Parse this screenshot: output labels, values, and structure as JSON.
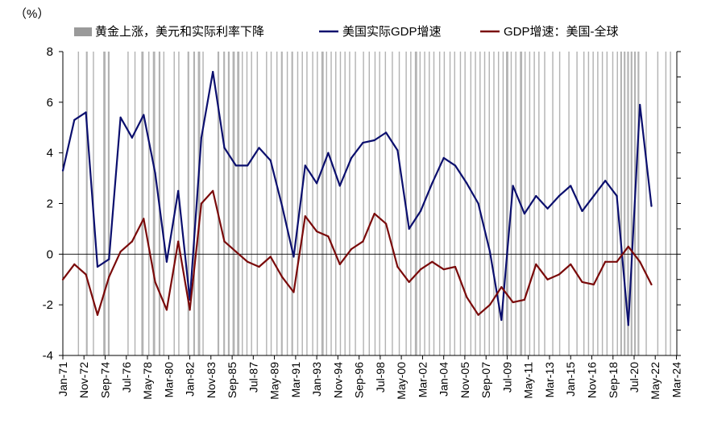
{
  "chart_data": {
    "type": "line",
    "unit_label": "（%）",
    "legend": [
      {
        "key": "shade",
        "label": "黄金上涨，美元和实际利率下降",
        "color": "#9a9a9a"
      },
      {
        "key": "us_gdp",
        "label": "美国实际GDP增速",
        "color": "#0b0f6e"
      },
      {
        "key": "diff",
        "label": "GDP增速：美国-全球",
        "color": "#7a0a0a"
      }
    ],
    "legend_position": "top",
    "ylim": [
      -4,
      8
    ],
    "yticks": [
      "8",
      "6",
      "4",
      "2",
      "0",
      "-2",
      "-4"
    ],
    "ytick_values": [
      8,
      6,
      4,
      2,
      0,
      -2,
      -4
    ],
    "xlim": [
      1971.0,
      2024.2
    ],
    "xtick_labels": [
      "Jan-71",
      "Nov-72",
      "Sep-74",
      "Jul-76",
      "May-78",
      "Mar-80",
      "Jan-82",
      "Nov-83",
      "Sep-85",
      "Jul-87",
      "May-89",
      "Mar-91",
      "Jan-93",
      "Nov-94",
      "Sep-96",
      "Jul-98",
      "May-00",
      "Mar-02",
      "Jan-04",
      "Nov-05",
      "Sep-07",
      "Jul-09",
      "May-11",
      "Mar-13",
      "Jan-15",
      "Nov-16",
      "Sep-18",
      "Jul-20",
      "May-22",
      "Mar-24"
    ],
    "xtick_values": [
      1971.0,
      1972.83,
      1974.67,
      1976.5,
      1978.33,
      1980.17,
      1982.0,
      1983.83,
      1985.67,
      1987.5,
      1989.33,
      1991.17,
      1993.0,
      1994.83,
      1996.67,
      1998.5,
      2000.33,
      2002.17,
      2004.0,
      2005.83,
      2007.67,
      2009.5,
      2011.33,
      2013.17,
      2015.0,
      2016.83,
      2018.67,
      2020.5,
      2022.33,
      2024.17
    ],
    "series": [
      {
        "name": "美国实际GDP增速",
        "color": "#0b0f6e",
        "x": [
          1971.0,
          1972.0,
          1973.0,
          1974.0,
          1975.0,
          1976.0,
          1977.0,
          1978.0,
          1979.0,
          1980.0,
          1981.0,
          1982.0,
          1983.0,
          1984.0,
          1985.0,
          1986.0,
          1987.0,
          1988.0,
          1989.0,
          1990.0,
          1991.0,
          1992.0,
          1993.0,
          1994.0,
          1995.0,
          1996.0,
          1997.0,
          1998.0,
          1999.0,
          2000.0,
          2001.0,
          2002.0,
          2003.0,
          2004.0,
          2005.0,
          2006.0,
          2007.0,
          2008.0,
          2009.0,
          2010.0,
          2011.0,
          2012.0,
          2013.0,
          2014.0,
          2015.0,
          2016.0,
          2017.0,
          2018.0,
          2019.0,
          2020.0,
          2021.0,
          2022.0
        ],
        "values": [
          3.3,
          5.3,
          5.6,
          -0.5,
          -0.2,
          5.4,
          4.6,
          5.5,
          3.2,
          -0.3,
          2.5,
          -1.8,
          4.6,
          7.2,
          4.2,
          3.5,
          3.5,
          4.2,
          3.7,
          1.9,
          -0.1,
          3.5,
          2.8,
          4.0,
          2.7,
          3.8,
          4.4,
          4.5,
          4.8,
          4.1,
          1.0,
          1.7,
          2.8,
          3.8,
          3.5,
          2.8,
          2.0,
          0.1,
          -2.6,
          2.7,
          1.6,
          2.3,
          1.8,
          2.3,
          2.7,
          1.7,
          2.3,
          2.9,
          2.3,
          -2.8,
          5.9,
          1.9
        ]
      },
      {
        "name": "GDP增速：美国-全球",
        "color": "#7a0a0a",
        "x": [
          1971.0,
          1972.0,
          1973.0,
          1974.0,
          1975.0,
          1976.0,
          1977.0,
          1978.0,
          1979.0,
          1980.0,
          1981.0,
          1982.0,
          1983.0,
          1984.0,
          1985.0,
          1986.0,
          1987.0,
          1988.0,
          1989.0,
          1990.0,
          1991.0,
          1992.0,
          1993.0,
          1994.0,
          1995.0,
          1996.0,
          1997.0,
          1998.0,
          1999.0,
          2000.0,
          2001.0,
          2002.0,
          2003.0,
          2004.0,
          2005.0,
          2006.0,
          2007.0,
          2008.0,
          2009.0,
          2010.0,
          2011.0,
          2012.0,
          2013.0,
          2014.0,
          2015.0,
          2016.0,
          2017.0,
          2018.0,
          2019.0,
          2020.0,
          2021.0,
          2022.0
        ],
        "values": [
          -1.0,
          -0.4,
          -0.8,
          -2.4,
          -0.9,
          0.1,
          0.5,
          1.4,
          -1.1,
          -2.2,
          0.5,
          -2.2,
          2.0,
          2.5,
          0.5,
          0.1,
          -0.3,
          -0.5,
          -0.1,
          -0.9,
          -1.5,
          1.5,
          0.9,
          0.7,
          -0.4,
          0.2,
          0.5,
          1.6,
          1.2,
          -0.5,
          -1.1,
          -0.6,
          -0.3,
          -0.6,
          -0.5,
          -1.7,
          -2.4,
          -2.0,
          -1.3,
          -1.9,
          -1.8,
          -0.4,
          -1.0,
          -0.8,
          -0.4,
          -1.1,
          -1.2,
          -0.3,
          -0.3,
          0.3,
          -0.3,
          -1.2
        ]
      }
    ],
    "shading": {
      "label": "黄金上涨，美元和实际利率下降",
      "color": "#9a9a9a",
      "periods": [
        [
          1972.3,
          1972.4
        ],
        [
          1973.0,
          1973.15
        ],
        [
          1973.6,
          1973.7
        ],
        [
          1974.5,
          1974.7
        ],
        [
          1974.9,
          1975.05
        ],
        [
          1976.6,
          1976.7
        ],
        [
          1977.2,
          1977.3
        ],
        [
          1977.8,
          1978.0
        ],
        [
          1978.4,
          1978.5
        ],
        [
          1978.8,
          1979.0
        ],
        [
          1979.3,
          1979.45
        ],
        [
          1979.7,
          1979.8
        ],
        [
          1980.6,
          1980.7
        ],
        [
          1981.0,
          1981.1
        ],
        [
          1981.8,
          1981.95
        ],
        [
          1982.3,
          1982.45
        ],
        [
          1982.7,
          1982.9
        ],
        [
          1983.1,
          1983.2
        ],
        [
          1984.4,
          1984.55
        ],
        [
          1984.9,
          1985.05
        ],
        [
          1985.3,
          1985.45
        ],
        [
          1985.7,
          1985.9
        ],
        [
          1986.1,
          1986.3
        ],
        [
          1986.5,
          1986.6
        ],
        [
          1986.9,
          1987.0
        ],
        [
          1987.3,
          1987.4
        ],
        [
          1987.8,
          1987.9
        ],
        [
          1988.6,
          1988.7
        ],
        [
          1989.0,
          1989.1
        ],
        [
          1989.5,
          1989.6
        ],
        [
          1989.9,
          1990.05
        ],
        [
          1990.4,
          1990.5
        ],
        [
          1990.8,
          1990.95
        ],
        [
          1991.3,
          1991.4
        ],
        [
          1991.7,
          1991.8
        ],
        [
          1992.1,
          1992.2
        ],
        [
          1992.6,
          1992.7
        ],
        [
          1993.0,
          1993.1
        ],
        [
          1993.4,
          1993.6
        ],
        [
          1993.8,
          1993.9
        ],
        [
          1994.2,
          1994.3
        ],
        [
          1994.6,
          1994.7
        ],
        [
          1995.0,
          1995.1
        ],
        [
          1995.4,
          1995.5
        ],
        [
          1995.8,
          1995.9
        ],
        [
          1996.3,
          1996.4
        ],
        [
          1997.0,
          1997.1
        ],
        [
          1997.5,
          1997.6
        ],
        [
          1998.0,
          1998.1
        ],
        [
          1998.4,
          1998.5
        ],
        [
          1998.9,
          1999.0
        ],
        [
          1999.5,
          1999.6
        ],
        [
          2000.1,
          2000.2
        ],
        [
          2000.7,
          2000.8
        ],
        [
          2001.1,
          2001.2
        ],
        [
          2001.5,
          2001.7
        ],
        [
          2001.9,
          2002.0
        ],
        [
          2002.3,
          2002.4
        ],
        [
          2002.7,
          2002.8
        ],
        [
          2003.1,
          2003.2
        ],
        [
          2003.6,
          2003.7
        ],
        [
          2004.0,
          2004.1
        ],
        [
          2004.5,
          2004.6
        ],
        [
          2004.9,
          2005.0
        ],
        [
          2005.4,
          2005.5
        ],
        [
          2005.8,
          2005.9
        ],
        [
          2006.3,
          2006.4
        ],
        [
          2006.7,
          2006.8
        ],
        [
          2007.1,
          2007.2
        ],
        [
          2007.5,
          2007.6
        ],
        [
          2007.9,
          2008.0
        ],
        [
          2008.3,
          2008.4
        ],
        [
          2008.7,
          2008.8
        ],
        [
          2009.1,
          2009.2
        ],
        [
          2009.4,
          2009.6
        ],
        [
          2009.8,
          2009.9
        ],
        [
          2010.2,
          2010.3
        ],
        [
          2010.6,
          2010.8
        ],
        [
          2011.0,
          2011.1
        ],
        [
          2011.4,
          2011.5
        ],
        [
          2011.8,
          2011.9
        ],
        [
          2012.2,
          2012.3
        ],
        [
          2012.7,
          2012.8
        ],
        [
          2013.4,
          2013.5
        ],
        [
          2014.0,
          2014.1
        ],
        [
          2014.8,
          2014.9
        ],
        [
          2015.5,
          2015.6
        ],
        [
          2016.1,
          2016.2
        ],
        [
          2016.5,
          2016.6
        ],
        [
          2016.9,
          2017.0
        ],
        [
          2017.3,
          2017.4
        ],
        [
          2017.7,
          2017.8
        ],
        [
          2018.1,
          2018.2
        ],
        [
          2018.6,
          2018.7
        ],
        [
          2019.0,
          2019.1
        ],
        [
          2019.3,
          2019.45
        ],
        [
          2019.6,
          2019.75
        ],
        [
          2019.9,
          2020.05
        ],
        [
          2020.2,
          2020.35
        ],
        [
          2020.5,
          2020.65
        ],
        [
          2020.8,
          2020.95
        ],
        [
          2021.5,
          2021.6
        ],
        [
          2022.5,
          2022.6
        ],
        [
          2023.2,
          2023.3
        ],
        [
          2023.6,
          2023.7
        ]
      ]
    },
    "grid": false
  }
}
